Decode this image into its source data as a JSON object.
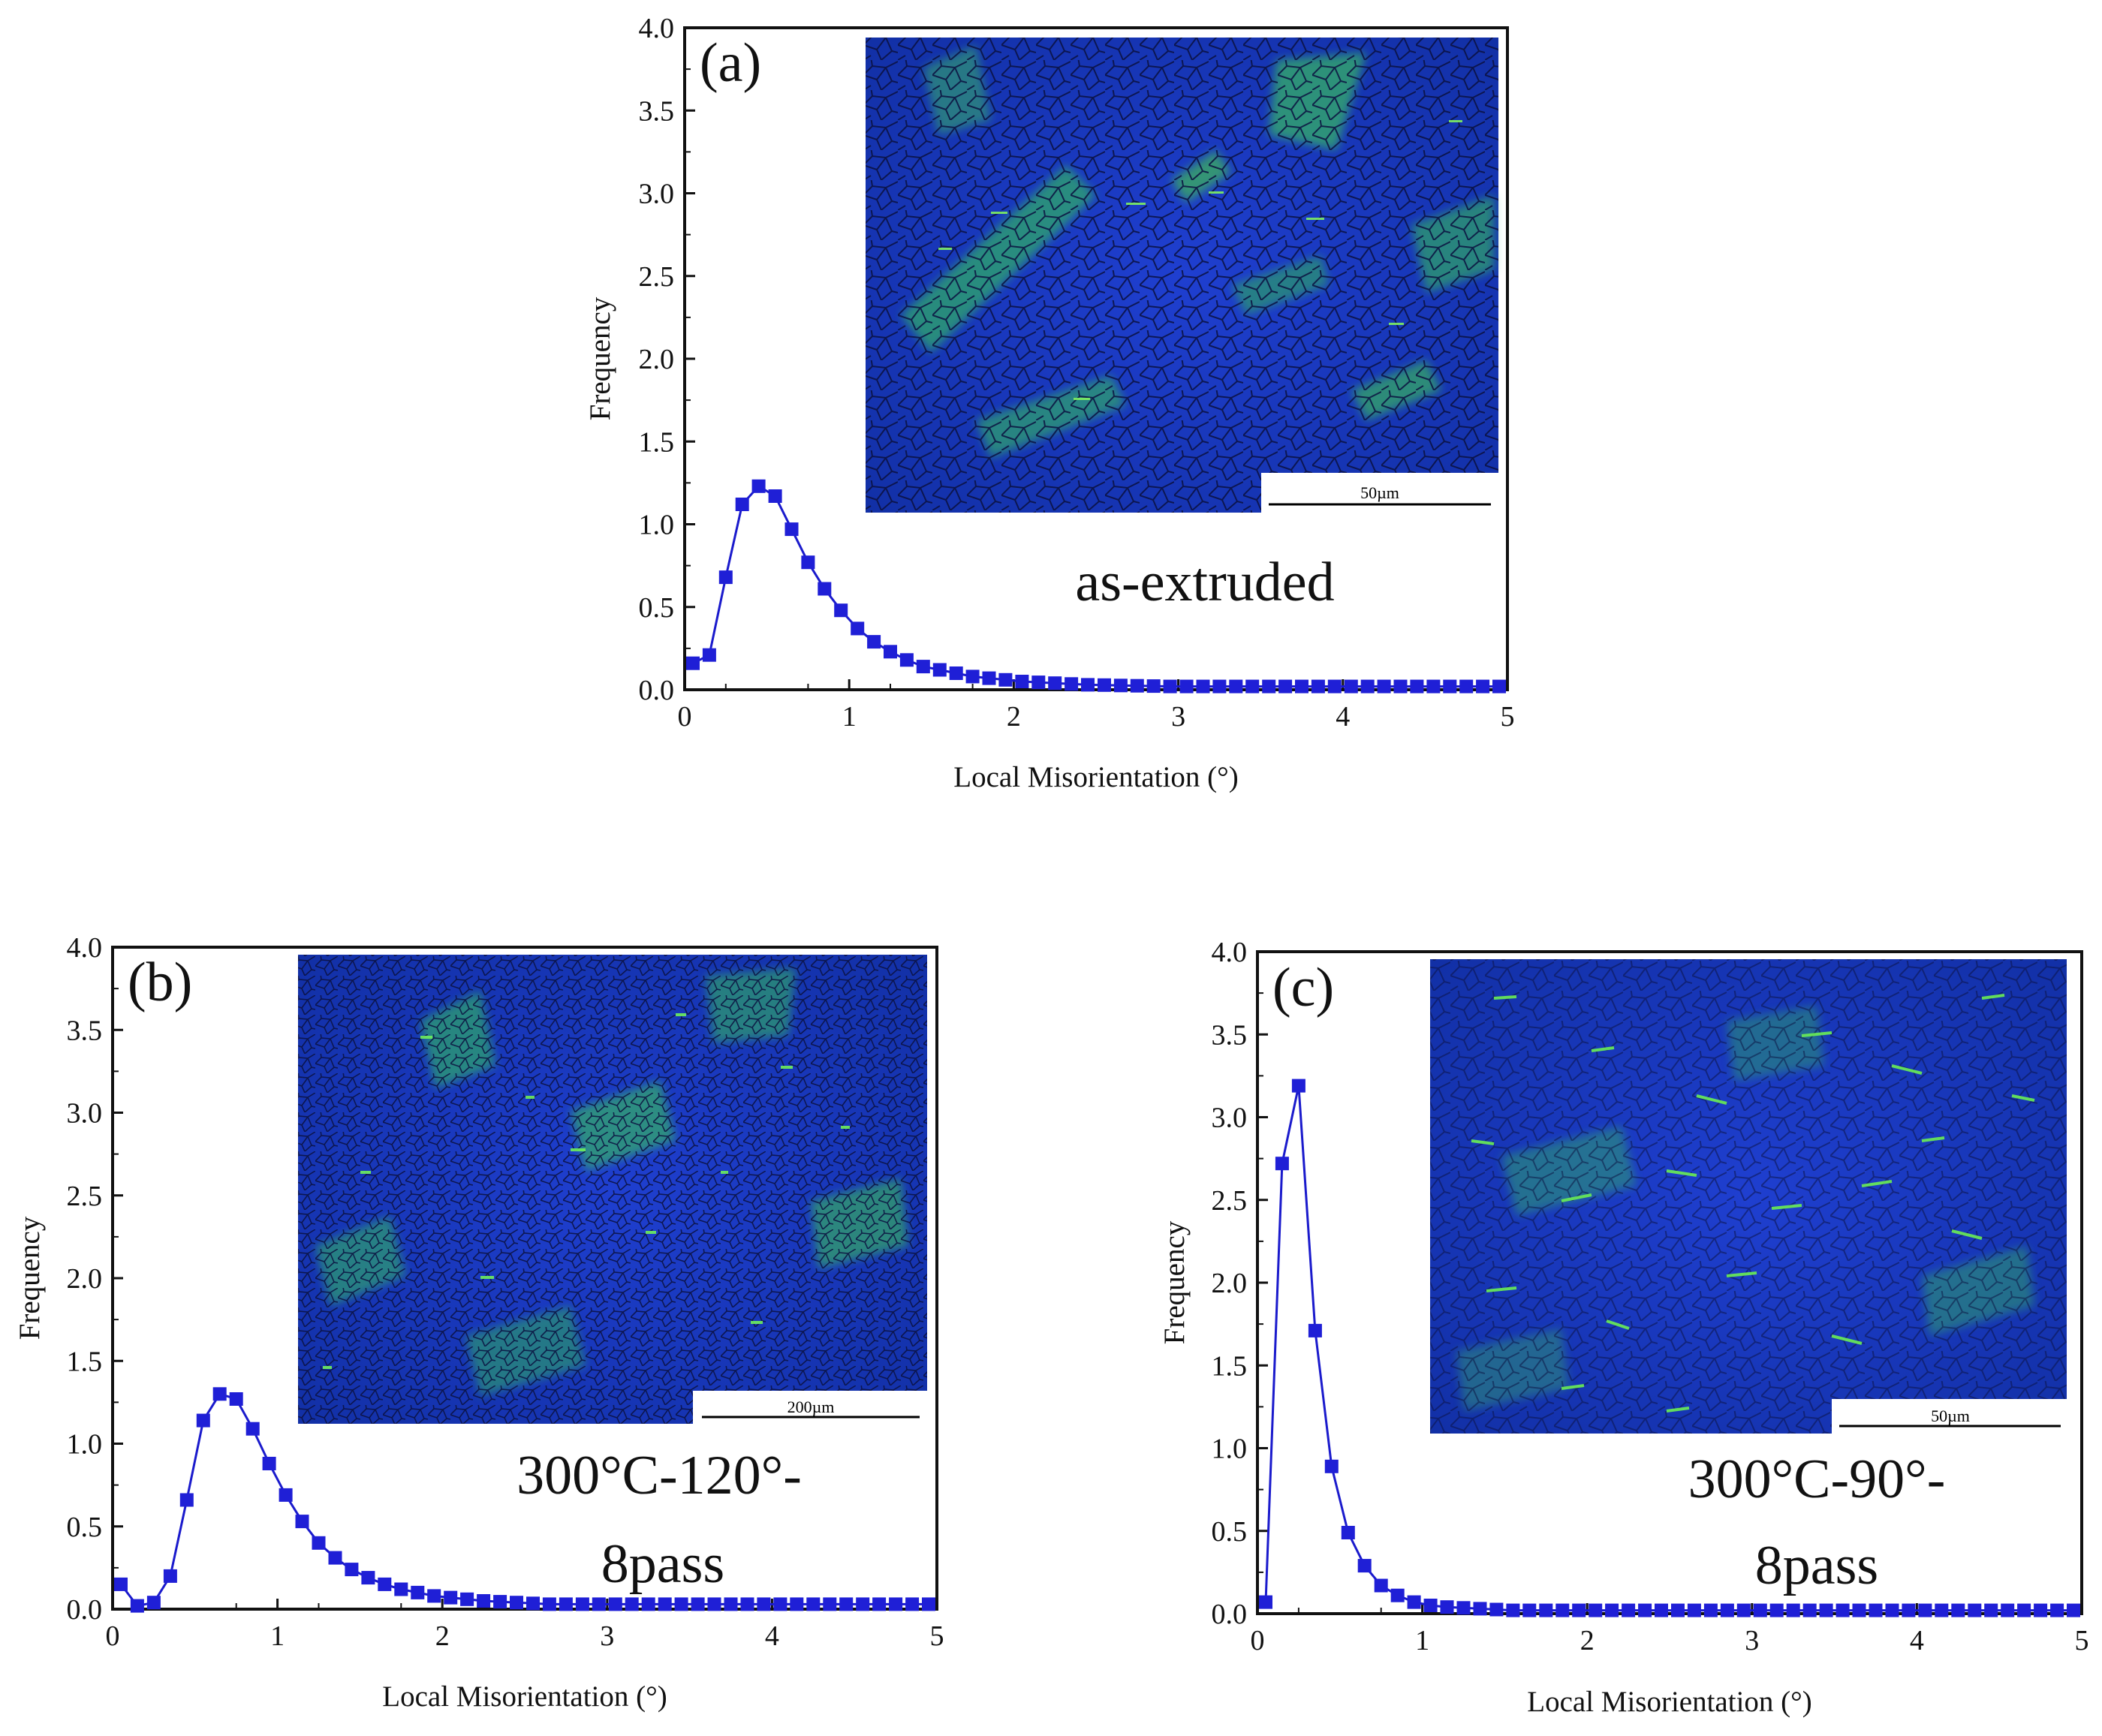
{
  "chart_data": [
    {
      "panel": "(a)",
      "type": "line",
      "sample_label": "as-extruded",
      "scale_bar_label": "50µm",
      "xlabel": "Local Misorientation (°)",
      "ylabel": "Frequency",
      "xlim": [
        0,
        5
      ],
      "ylim": [
        0,
        4
      ],
      "xticks": [
        "0",
        "1",
        "2",
        "3",
        "4",
        "5"
      ],
      "yticks": [
        "0.0",
        "0.5",
        "1.0",
        "1.5",
        "2.0",
        "2.5",
        "3.0",
        "3.5",
        "4.0"
      ],
      "series": [
        {
          "name": "as-extruded",
          "x": [
            0.05,
            0.15,
            0.25,
            0.35,
            0.45,
            0.55,
            0.65,
            0.75,
            0.85,
            0.95,
            1.05,
            1.15,
            1.25,
            1.35,
            1.45,
            1.55,
            1.65,
            1.75,
            1.85,
            1.95,
            2.05,
            2.15,
            2.25,
            2.35,
            2.45,
            2.55,
            2.65,
            2.75,
            2.85,
            2.95,
            3.05,
            3.15,
            3.25,
            3.35,
            3.45,
            3.55,
            3.65,
            3.75,
            3.85,
            3.95,
            4.05,
            4.15,
            4.25,
            4.35,
            4.45,
            4.55,
            4.65,
            4.75,
            4.85,
            4.95
          ],
          "y": [
            0.16,
            0.21,
            0.68,
            1.12,
            1.23,
            1.17,
            0.97,
            0.77,
            0.61,
            0.48,
            0.37,
            0.29,
            0.23,
            0.18,
            0.14,
            0.12,
            0.1,
            0.08,
            0.07,
            0.06,
            0.05,
            0.045,
            0.04,
            0.035,
            0.03,
            0.028,
            0.026,
            0.024,
            0.022,
            0.02,
            0.02,
            0.02,
            0.02,
            0.02,
            0.02,
            0.02,
            0.02,
            0.02,
            0.02,
            0.02,
            0.02,
            0.02,
            0.02,
            0.02,
            0.02,
            0.02,
            0.02,
            0.02,
            0.02,
            0.02
          ]
        }
      ]
    },
    {
      "panel": "(b)",
      "type": "line",
      "sample_label": "300°C-120°-",
      "sample_label_line2": "8pass",
      "scale_bar_label": "200µm",
      "xlabel": "Local Misorientation (°)",
      "ylabel": "Frequency",
      "xlim": [
        0,
        5
      ],
      "ylim": [
        0,
        4
      ],
      "xticks": [
        "0",
        "1",
        "2",
        "3",
        "4",
        "5"
      ],
      "yticks": [
        "0.0",
        "0.5",
        "1.0",
        "1.5",
        "2.0",
        "2.5",
        "3.0",
        "3.5",
        "4.0"
      ],
      "series": [
        {
          "name": "300°C-120°-8pass",
          "x": [
            0.05,
            0.15,
            0.25,
            0.35,
            0.45,
            0.55,
            0.65,
            0.75,
            0.85,
            0.95,
            1.05,
            1.15,
            1.25,
            1.35,
            1.45,
            1.55,
            1.65,
            1.75,
            1.85,
            1.95,
            2.05,
            2.15,
            2.25,
            2.35,
            2.45,
            2.55,
            2.65,
            2.75,
            2.85,
            2.95,
            3.05,
            3.15,
            3.25,
            3.35,
            3.45,
            3.55,
            3.65,
            3.75,
            3.85,
            3.95,
            4.05,
            4.15,
            4.25,
            4.35,
            4.45,
            4.55,
            4.65,
            4.75,
            4.85,
            4.95
          ],
          "y": [
            0.15,
            0.02,
            0.04,
            0.2,
            0.66,
            1.14,
            1.3,
            1.27,
            1.09,
            0.88,
            0.69,
            0.53,
            0.4,
            0.31,
            0.24,
            0.19,
            0.15,
            0.12,
            0.1,
            0.08,
            0.07,
            0.06,
            0.05,
            0.045,
            0.04,
            0.035,
            0.03,
            0.03,
            0.03,
            0.03,
            0.03,
            0.03,
            0.03,
            0.03,
            0.03,
            0.03,
            0.03,
            0.03,
            0.03,
            0.03,
            0.03,
            0.03,
            0.03,
            0.03,
            0.03,
            0.03,
            0.03,
            0.03,
            0.03,
            0.03
          ]
        }
      ]
    },
    {
      "panel": "(c)",
      "type": "line",
      "sample_label": "300°C-90°-",
      "sample_label_line2": "8pass",
      "scale_bar_label": "50µm",
      "xlabel": "Local Misorientation (°)",
      "ylabel": "Frequency",
      "xlim": [
        0,
        5
      ],
      "ylim": [
        0,
        4
      ],
      "xticks": [
        "0",
        "1",
        "2",
        "3",
        "4",
        "5"
      ],
      "yticks": [
        "0.0",
        "0.5",
        "1.0",
        "1.5",
        "2.0",
        "2.5",
        "3.0",
        "3.5",
        "4.0"
      ],
      "series": [
        {
          "name": "300°C-90°-8pass",
          "x": [
            0.05,
            0.15,
            0.25,
            0.35,
            0.45,
            0.55,
            0.65,
            0.75,
            0.85,
            0.95,
            1.05,
            1.15,
            1.25,
            1.35,
            1.45,
            1.55,
            1.65,
            1.75,
            1.85,
            1.95,
            2.05,
            2.15,
            2.25,
            2.35,
            2.45,
            2.55,
            2.65,
            2.75,
            2.85,
            2.95,
            3.05,
            3.15,
            3.25,
            3.35,
            3.45,
            3.55,
            3.65,
            3.75,
            3.85,
            3.95,
            4.05,
            4.15,
            4.25,
            4.35,
            4.45,
            4.55,
            4.65,
            4.75,
            4.85,
            4.95
          ],
          "y": [
            0.07,
            2.72,
            3.19,
            1.71,
            0.89,
            0.49,
            0.29,
            0.17,
            0.11,
            0.07,
            0.05,
            0.04,
            0.035,
            0.03,
            0.025,
            0.02,
            0.02,
            0.02,
            0.02,
            0.02,
            0.02,
            0.02,
            0.02,
            0.02,
            0.02,
            0.02,
            0.02,
            0.02,
            0.02,
            0.02,
            0.02,
            0.02,
            0.02,
            0.02,
            0.02,
            0.02,
            0.02,
            0.02,
            0.02,
            0.02,
            0.02,
            0.02,
            0.02,
            0.02,
            0.02,
            0.02,
            0.02,
            0.02,
            0.02,
            0.02
          ]
        }
      ]
    }
  ],
  "colors": {
    "series": "#1a1acc",
    "marker": "#1f1fd6",
    "ebsd_base": "#1633b4",
    "ebsd_green": "#3fd24a"
  }
}
